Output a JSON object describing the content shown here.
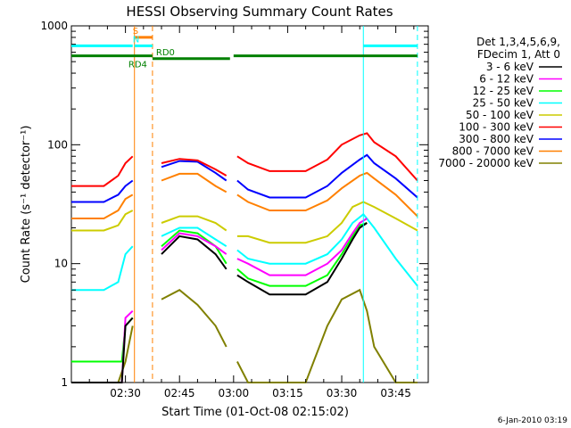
{
  "chart_data": {
    "type": "line",
    "title": "HESSI Observing Summary Count Rates",
    "xlabel": "Start Time (01-Oct-08 02:15:02)",
    "ylabel": "Count Rate (s⁻¹ detector⁻¹)",
    "x_range_min": [
      15,
      114
    ],
    "y_scale": "log",
    "ylim": [
      1,
      1000
    ],
    "x_ticks": [
      {
        "min": 30,
        "label": "02:30"
      },
      {
        "min": 45,
        "label": "02:45"
      },
      {
        "min": 60,
        "label": "03:00"
      },
      {
        "min": 75,
        "label": "03:15"
      },
      {
        "min": 90,
        "label": "03:30"
      },
      {
        "min": 105,
        "label": "03:45"
      }
    ],
    "y_ticks": [
      {
        "value": 1,
        "label": "1"
      },
      {
        "value": 10,
        "label": "10"
      },
      {
        "value": 100,
        "label": "100"
      },
      {
        "value": 1000,
        "label": "1000"
      }
    ],
    "legend_header": [
      "Det 1,3,4,5,6,9,",
      "FDecim 1, Att 0"
    ],
    "legend_position": "right",
    "series": [
      {
        "name": "3 - 6 keV",
        "color": "#000000",
        "points": [
          [
            15,
            1
          ],
          [
            29,
            1
          ],
          [
            30,
            3
          ],
          [
            32,
            3.5
          ],
          [
            33,
            null
          ],
          [
            40,
            12
          ],
          [
            45,
            17
          ],
          [
            50,
            16
          ],
          [
            55,
            12
          ],
          [
            58,
            9
          ],
          [
            60,
            null
          ],
          [
            61,
            8
          ],
          [
            64,
            7
          ],
          [
            70,
            5.5
          ],
          [
            80,
            5.5
          ],
          [
            86,
            7
          ],
          [
            90,
            11
          ],
          [
            93,
            16
          ],
          [
            95,
            20
          ],
          [
            97,
            22
          ],
          [
            99,
            null
          ],
          [
            105,
            null
          ]
        ]
      },
      {
        "name": "6 - 12 keV",
        "color": "#ff00ff",
        "points": [
          [
            15,
            1
          ],
          [
            29,
            1
          ],
          [
            30,
            3.5
          ],
          [
            32,
            4
          ],
          [
            33,
            null
          ],
          [
            40,
            13
          ],
          [
            45,
            18
          ],
          [
            50,
            17
          ],
          [
            55,
            14
          ],
          [
            58,
            12
          ],
          [
            60,
            null
          ],
          [
            61,
            11
          ],
          [
            64,
            10
          ],
          [
            70,
            8
          ],
          [
            80,
            8
          ],
          [
            86,
            10
          ],
          [
            90,
            13
          ],
          [
            93,
            18
          ],
          [
            95,
            22
          ],
          [
            97,
            24
          ],
          [
            99,
            null
          ],
          [
            105,
            null
          ]
        ]
      },
      {
        "name": "12 - 25 keV",
        "color": "#00ff00",
        "points": [
          [
            15,
            1.5
          ],
          [
            29,
            1.5
          ],
          [
            30,
            3
          ],
          [
            32,
            3.5
          ],
          [
            33,
            null
          ],
          [
            40,
            14
          ],
          [
            45,
            19
          ],
          [
            50,
            18
          ],
          [
            55,
            14
          ],
          [
            58,
            10
          ],
          [
            60,
            null
          ],
          [
            61,
            9
          ],
          [
            64,
            7.5
          ],
          [
            70,
            6.5
          ],
          [
            80,
            6.5
          ],
          [
            86,
            8
          ],
          [
            90,
            12
          ],
          [
            93,
            17
          ],
          [
            95,
            21
          ],
          [
            97,
            22
          ],
          [
            99,
            null
          ],
          [
            105,
            null
          ]
        ]
      },
      {
        "name": "25 - 50 keV",
        "color": "#00ffff",
        "points": [
          [
            15,
            6
          ],
          [
            24,
            6
          ],
          [
            28,
            7
          ],
          [
            30,
            12
          ],
          [
            32,
            14
          ],
          [
            33,
            null
          ],
          [
            40,
            17
          ],
          [
            45,
            20
          ],
          [
            50,
            20
          ],
          [
            55,
            16
          ],
          [
            58,
            14
          ],
          [
            60,
            null
          ],
          [
            61,
            13
          ],
          [
            64,
            11
          ],
          [
            70,
            10
          ],
          [
            80,
            10
          ],
          [
            86,
            12
          ],
          [
            90,
            16
          ],
          [
            93,
            22
          ],
          [
            96,
            26
          ],
          [
            99,
            20
          ],
          [
            105,
            11
          ],
          [
            111,
            6.5
          ]
        ]
      },
      {
        "name": "50 - 100 keV",
        "color": "#cccc00",
        "points": [
          [
            15,
            19
          ],
          [
            24,
            19
          ],
          [
            28,
            21
          ],
          [
            30,
            26
          ],
          [
            32,
            28
          ],
          [
            33,
            null
          ],
          [
            40,
            22
          ],
          [
            45,
            25
          ],
          [
            50,
            25
          ],
          [
            55,
            22
          ],
          [
            58,
            19
          ],
          [
            60,
            null
          ],
          [
            61,
            17
          ],
          [
            64,
            17
          ],
          [
            70,
            15
          ],
          [
            80,
            15
          ],
          [
            86,
            17
          ],
          [
            90,
            22
          ],
          [
            93,
            30
          ],
          [
            96,
            33
          ],
          [
            99,
            30
          ],
          [
            105,
            24
          ],
          [
            111,
            19
          ]
        ]
      },
      {
        "name": "100 - 300 keV",
        "color": "#ff0000",
        "points": [
          [
            15,
            45
          ],
          [
            24,
            45
          ],
          [
            28,
            55
          ],
          [
            30,
            70
          ],
          [
            32,
            80
          ],
          [
            33,
            null
          ],
          [
            40,
            70
          ],
          [
            45,
            76
          ],
          [
            50,
            74
          ],
          [
            55,
            62
          ],
          [
            58,
            55
          ],
          [
            60,
            null
          ],
          [
            61,
            80
          ],
          [
            64,
            70
          ],
          [
            70,
            60
          ],
          [
            80,
            60
          ],
          [
            86,
            75
          ],
          [
            90,
            100
          ],
          [
            95,
            120
          ],
          [
            97,
            125
          ],
          [
            99,
            105
          ],
          [
            105,
            80
          ],
          [
            111,
            50
          ]
        ]
      },
      {
        "name": "300 - 800 keV",
        "color": "#0000ff",
        "points": [
          [
            15,
            33
          ],
          [
            24,
            33
          ],
          [
            28,
            38
          ],
          [
            30,
            45
          ],
          [
            32,
            50
          ],
          [
            33,
            null
          ],
          [
            40,
            65
          ],
          [
            45,
            73
          ],
          [
            50,
            72
          ],
          [
            55,
            58
          ],
          [
            58,
            50
          ],
          [
            60,
            null
          ],
          [
            61,
            50
          ],
          [
            64,
            42
          ],
          [
            70,
            36
          ],
          [
            80,
            36
          ],
          [
            86,
            45
          ],
          [
            90,
            58
          ],
          [
            95,
            75
          ],
          [
            97,
            82
          ],
          [
            99,
            70
          ],
          [
            105,
            52
          ],
          [
            111,
            36
          ]
        ]
      },
      {
        "name": "800 - 7000 keV",
        "color": "#ff8000",
        "points": [
          [
            15,
            24
          ],
          [
            24,
            24
          ],
          [
            28,
            28
          ],
          [
            30,
            35
          ],
          [
            32,
            38
          ],
          [
            33,
            null
          ],
          [
            40,
            50
          ],
          [
            45,
            57
          ],
          [
            50,
            57
          ],
          [
            55,
            45
          ],
          [
            58,
            40
          ],
          [
            60,
            null
          ],
          [
            61,
            38
          ],
          [
            64,
            33
          ],
          [
            70,
            28
          ],
          [
            80,
            28
          ],
          [
            86,
            34
          ],
          [
            90,
            43
          ],
          [
            95,
            55
          ],
          [
            97,
            58
          ],
          [
            99,
            52
          ],
          [
            105,
            38
          ],
          [
            111,
            25
          ]
        ]
      },
      {
        "name": "7000 - 20000 keV",
        "color": "#808000",
        "points": [
          [
            15,
            1
          ],
          [
            28,
            1
          ],
          [
            30,
            1.5
          ],
          [
            32,
            3
          ],
          [
            33,
            null
          ],
          [
            40,
            5
          ],
          [
            45,
            6
          ],
          [
            50,
            4.5
          ],
          [
            55,
            3
          ],
          [
            58,
            2
          ],
          [
            60,
            null
          ],
          [
            61,
            1.5
          ],
          [
            64,
            1
          ],
          [
            80,
            1
          ],
          [
            86,
            3
          ],
          [
            90,
            5
          ],
          [
            95,
            6
          ],
          [
            97,
            4
          ],
          [
            99,
            2
          ],
          [
            105,
            1
          ],
          [
            111,
            1
          ]
        ]
      }
    ],
    "bars": [
      {
        "label": "S",
        "color": "#ff8000",
        "from": 32.5,
        "to": 37.5,
        "level": 800
      },
      {
        "label": "N",
        "color": "#00ffff",
        "from": 32.5,
        "to": 37.5,
        "level": 680
      },
      {
        "label": "",
        "color": "#00ffff",
        "from": 15,
        "to": 32,
        "level": 680
      },
      {
        "label": "",
        "color": "#00ffff",
        "from": 96,
        "to": 111,
        "level": 680
      },
      {
        "label": "RD0",
        "color": "#008000",
        "from": 37.5,
        "to": 59,
        "level": 530
      },
      {
        "label": "RD4",
        "color": "#008000",
        "from": 15,
        "to": 37.5,
        "level": 560
      },
      {
        "label": "",
        "color": "#008000",
        "from": 60,
        "to": 111,
        "level": 560
      }
    ],
    "vlines": [
      {
        "min": 32.5,
        "color": "#ff8000",
        "style": "solid"
      },
      {
        "min": 37.5,
        "color": "#ff8000",
        "style": "dashed"
      },
      {
        "min": 96,
        "color": "#00ffff",
        "style": "solid"
      },
      {
        "min": 111,
        "color": "#00ffff",
        "style": "dashed"
      }
    ]
  },
  "footer": {
    "timestamp": "6-Jan-2010 03:19"
  }
}
